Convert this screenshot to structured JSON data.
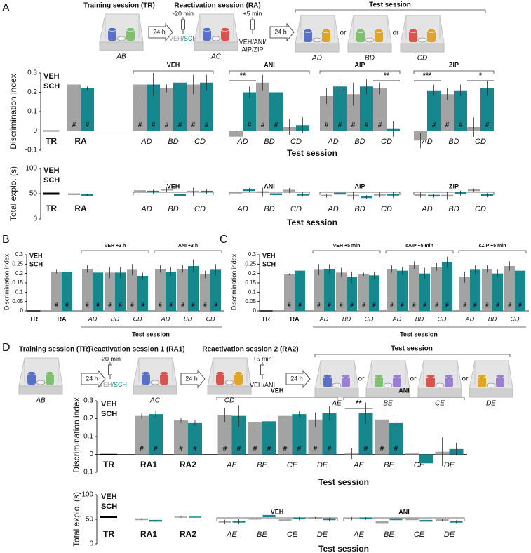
{
  "panel_labels": [
    "A",
    "B",
    "C",
    "D"
  ],
  "schematics": [
    {
      "training_title": "Training session (TR)",
      "training_context": "AB",
      "delays": [
        "24 h",
        "24 h"
      ],
      "reactivation_title": "Reactivation session (RA)",
      "pre_time": "-20 min",
      "pre_treatment": [
        {
          "text": "VEH",
          "color": "#9b9b9b"
        },
        {
          "text": "/SCH",
          "color": "#17878e"
        }
      ],
      "reactivation_context": "AC",
      "post_time": "+5 min",
      "post_treatment": [
        "VEH/ANI/",
        "AIP/ZIP"
      ],
      "test_title": "Test session",
      "test_contexts": [
        "AD",
        "BD",
        "CD"
      ],
      "separators": [
        "or",
        "or"
      ]
    },
    {
      "training_title": "Training session (TR)",
      "training_context": "AB",
      "delays": [
        "24 h",
        "24 h",
        "24 h"
      ],
      "reactivation1_title": "Reactivation session 1 (RA1)",
      "pre_time": "-20 min",
      "pre_treatment": [
        {
          "text": "VEH",
          "color": "#9b9b9b"
        },
        {
          "text": "/SCH",
          "color": "#17878e"
        }
      ],
      "reactivation1_context": "AC",
      "reactivation2_title": "Reactivation session 2 (RA2)",
      "reactivation2_context": "CD",
      "post_time": "+5 min",
      "post_treatment": [
        "VEH/ANI"
      ],
      "test_title": "Test session",
      "test_contexts": [
        "AE",
        "BE",
        "CE",
        "DE"
      ],
      "separators": [
        "or",
        "or",
        "or"
      ]
    }
  ],
  "chart_data": [
    {
      "type": "bar",
      "ylabel": "Discrimination index",
      "xlabel": "Test session",
      "ylim": [
        -0.1,
        0.3
      ],
      "yticks": [
        -0.1,
        0,
        0.1,
        0.2,
        0.3
      ],
      "training": {
        "category": "TR",
        "value": 0,
        "color": "#000000"
      },
      "reactivation_categories": [
        "RA"
      ],
      "groups": [
        {
          "label": "VEH",
          "categories": [
            "AD",
            "BD",
            "CD"
          ],
          "significance": [
            null,
            null,
            null
          ]
        },
        {
          "label": "ANI",
          "categories": [
            "AD",
            "BD",
            "CD"
          ],
          "significance": [
            "**",
            null,
            null
          ]
        },
        {
          "label": "AIP",
          "categories": [
            "AD",
            "BD",
            "CD"
          ],
          "significance": [
            null,
            null,
            "**"
          ]
        },
        {
          "label": "ZIP",
          "categories": [
            "AD",
            "BD",
            "CD"
          ],
          "significance": [
            "***",
            null,
            "*"
          ]
        }
      ],
      "series": [
        {
          "name": "VEH",
          "color": "#a3a3a3",
          "values": [
            0.24,
            0.24,
            0.22,
            0.24,
            -0.03,
            0.25,
            0.02,
            0.18,
            0.19,
            0.22,
            -0.05,
            0.19,
            0.02
          ],
          "errors": [
            0.01,
            0.06,
            0.02,
            0.05,
            0.04,
            0.04,
            0.04,
            0.04,
            0.06,
            0.03,
            0.04,
            0.03,
            0.05
          ],
          "markers": [
            "#",
            "#",
            "#",
            "#",
            null,
            "#",
            null,
            "#",
            "#",
            "#",
            null,
            "#",
            null
          ]
        },
        {
          "name": "SCH",
          "color": "#17878e",
          "values": [
            0.22,
            0.24,
            0.25,
            0.25,
            0.2,
            0.2,
            0.03,
            0.23,
            0.23,
            0.01,
            0.21,
            0.21,
            0.22
          ],
          "errors": [
            0.01,
            0.06,
            0.02,
            0.04,
            0.03,
            0.05,
            0.04,
            0.03,
            0.04,
            0.04,
            0.03,
            0.03,
            0.04
          ],
          "markers": [
            "#",
            "#",
            "#",
            "#",
            "#",
            "#",
            null,
            "#",
            "#",
            null,
            "#",
            "#",
            "#"
          ]
        }
      ]
    },
    {
      "type": "dash",
      "ylabel": "Total explo. (s)",
      "xlabel": "Test session",
      "ylim": [
        0,
        100
      ],
      "yticks": [
        0,
        50,
        100
      ],
      "training": {
        "category": "TR",
        "value": 50,
        "color": "#000000"
      },
      "reactivation_categories": [
        "RA"
      ],
      "groups": [
        {
          "label": "VEH",
          "categories": [
            "AD",
            "BD",
            "CD"
          ]
        },
        {
          "label": "ANI",
          "categories": [
            "AD",
            "BD",
            "CD"
          ]
        },
        {
          "label": "AIP",
          "categories": [
            "AD",
            "BD",
            "CD"
          ]
        },
        {
          "label": "ZIP",
          "categories": [
            "AD",
            "BD",
            "CD"
          ]
        }
      ],
      "series": [
        {
          "name": "VEH",
          "color": "#a3a3a3",
          "values": [
            49,
            55,
            58,
            54,
            52,
            53,
            56,
            46,
            46,
            48,
            47,
            46,
            57
          ],
          "errors": [
            3,
            5,
            5,
            8,
            4,
            9,
            5,
            4,
            8,
            5,
            5,
            8,
            3
          ]
        },
        {
          "name": "SCH",
          "color": "#17878e",
          "values": [
            47,
            54,
            47,
            54,
            57,
            49,
            48,
            50,
            43,
            48,
            46,
            51,
            47
          ],
          "errors": [
            2,
            4,
            5,
            5,
            4,
            5,
            4,
            2,
            4,
            6,
            4,
            5,
            4
          ]
        }
      ]
    },
    {
      "type": "bar",
      "ylabel": "Discrimination index",
      "xlabel": "Test session",
      "ylim": [
        0,
        0.3
      ],
      "yticks": [
        0,
        0.05,
        0.1,
        0.15,
        0.2,
        0.25,
        0.3
      ],
      "training": {
        "category": "TR",
        "value": 0,
        "color": "#000000"
      },
      "reactivation_categories": [
        "RA"
      ],
      "groups": [
        {
          "label": "VEH +3 h",
          "categories": [
            "AD",
            "BD",
            "CD"
          ]
        },
        {
          "label": "ANI +3 h",
          "categories": [
            "AD",
            "BD",
            "CD"
          ]
        }
      ],
      "series": [
        {
          "name": "VEH",
          "color": "#a3a3a3",
          "values": [
            0.21,
            0.225,
            0.205,
            0.22,
            0.225,
            0.225,
            0.195
          ],
          "errors": [
            0.01,
            0.02,
            0.03,
            0.03,
            0.02,
            0.02,
            0.02
          ],
          "markers": [
            "#",
            "#",
            "#",
            "#",
            "#",
            "#",
            "#"
          ]
        },
        {
          "name": "SCH",
          "color": "#17878e",
          "values": [
            0.21,
            0.205,
            0.205,
            0.185,
            0.21,
            0.24,
            0.22
          ],
          "errors": [
            0.01,
            0.03,
            0.03,
            0.02,
            0.025,
            0.035,
            0.03
          ],
          "markers": [
            "#",
            "#",
            "#",
            "#",
            "#",
            "#",
            "#"
          ]
        }
      ]
    },
    {
      "type": "bar",
      "ylabel": "Discrimination index",
      "xlabel": "Test session",
      "ylim": [
        0,
        0.3
      ],
      "yticks": [
        0,
        0.05,
        0.1,
        0.15,
        0.2,
        0.25,
        0.3
      ],
      "training": {
        "category": "TR",
        "value": 0,
        "color": "#000000"
      },
      "reactivation_categories": [
        "RA"
      ],
      "groups": [
        {
          "label": "VEH +5 min",
          "categories": [
            "AD",
            "BD",
            "CD"
          ]
        },
        {
          "label": "sAIP +5 min",
          "categories": [
            "AD",
            "BD",
            "CD"
          ]
        },
        {
          "label": "sZIP +5 min",
          "categories": [
            "AD",
            "BD",
            "CD"
          ]
        }
      ],
      "series": [
        {
          "name": "VEH",
          "color": "#a3a3a3",
          "values": [
            0.195,
            0.22,
            0.205,
            0.195,
            0.225,
            0.245,
            0.235,
            0.18,
            0.225,
            0.24
          ],
          "errors": [
            0.005,
            0.03,
            0.025,
            0.01,
            0.02,
            0.02,
            0.02,
            0.03,
            0.02,
            0.025
          ],
          "markers": [
            "#",
            "#",
            "#",
            "#",
            "#",
            "#",
            "#",
            "#",
            "#",
            "#"
          ]
        },
        {
          "name": "SCH",
          "color": "#17878e",
          "values": [
            0.215,
            0.225,
            0.18,
            0.19,
            0.215,
            0.2,
            0.26,
            0.22,
            0.2,
            0.215
          ],
          "errors": [
            0.005,
            0.025,
            0.03,
            0.02,
            0.02,
            0.03,
            0.03,
            0.025,
            0.02,
            0.02
          ],
          "markers": [
            "#",
            "#",
            "#",
            "#",
            "#",
            "#",
            "#",
            "#",
            "#",
            "#"
          ]
        }
      ]
    },
    {
      "type": "bar",
      "ylabel": "Discrimination index",
      "xlabel": "Test session",
      "ylim": [
        -0.1,
        0.3
      ],
      "yticks": [
        -0.1,
        0,
        0.1,
        0.2,
        0.3
      ],
      "training": {
        "category": "TR",
        "value": 0,
        "color": "#000000"
      },
      "reactivation_categories": [
        "RA1",
        "RA2"
      ],
      "groups": [
        {
          "label": "VEH",
          "categories": [
            "AE",
            "BE",
            "CE",
            "DE"
          ],
          "significance": [
            null,
            null,
            null,
            null
          ]
        },
        {
          "label": "ANI",
          "categories": [
            "AE",
            "BE",
            "CE",
            "DE"
          ],
          "significance": [
            "**",
            null,
            null,
            null
          ]
        }
      ],
      "series": [
        {
          "name": "VEH",
          "color": "#a3a3a3",
          "values": [
            0.215,
            0.19,
            0.22,
            0.18,
            0.215,
            0.195,
            0.005,
            0.195,
            0.005,
            0.015
          ],
          "errors": [
            0.015,
            0.015,
            0.04,
            0.04,
            0.025,
            0.04,
            0.03,
            0.04,
            0.05,
            0.08
          ],
          "markers": [
            "#",
            "#",
            "#",
            "#",
            "#",
            "#",
            null,
            "#",
            null,
            null
          ]
        },
        {
          "name": "SCH",
          "color": "#17878e",
          "values": [
            0.225,
            0.175,
            0.215,
            0.185,
            0.225,
            0.23,
            0.23,
            0.175,
            -0.05,
            0.03
          ],
          "errors": [
            0.02,
            0.015,
            0.06,
            0.03,
            0.015,
            0.04,
            0.06,
            0.03,
            0.04,
            0.035
          ],
          "markers": [
            "#",
            "#",
            "#",
            "#",
            "#",
            "#",
            "#",
            "#",
            null,
            null
          ]
        }
      ]
    },
    {
      "type": "dash",
      "ylabel": "Total explo. (s)",
      "xlabel": "Test session",
      "ylim": [
        0,
        100
      ],
      "yticks": [
        0,
        50,
        100
      ],
      "training": {
        "category": "TR",
        "value": 55,
        "color": "#000000"
      },
      "reactivation_categories": [
        "RA1",
        "RA2"
      ],
      "groups": [
        {
          "label": "VEH",
          "categories": [
            "AE",
            "BE",
            "CE",
            "DE"
          ]
        },
        {
          "label": "ANI",
          "categories": [
            "AE",
            "BE",
            "CE",
            "DE"
          ]
        }
      ],
      "series": [
        {
          "name": "VEH",
          "color": "#a3a3a3",
          "values": [
            50,
            55,
            45,
            51,
            48,
            53,
            52,
            44,
            50,
            48
          ],
          "errors": [
            2,
            2,
            4,
            3,
            3,
            3,
            4,
            3,
            2,
            2
          ]
        },
        {
          "name": "SCH",
          "color": "#17878e",
          "values": [
            47,
            55,
            45,
            57,
            52,
            50,
            52,
            50,
            47,
            45
          ],
          "errors": [
            2,
            1,
            5,
            5,
            4,
            3,
            3,
            6,
            3,
            3
          ]
        }
      ]
    }
  ]
}
